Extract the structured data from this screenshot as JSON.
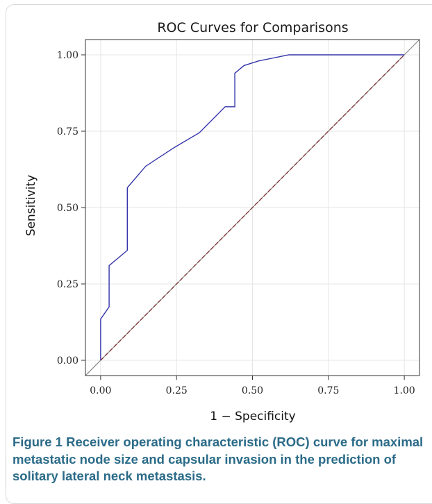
{
  "chart_data": {
    "type": "line",
    "title": "ROC Curves for Comparisons",
    "xlabel": "1 − Specificity",
    "ylabel": "Sensitivity",
    "xlim": [
      -0.05,
      1.05
    ],
    "ylim": [
      -0.05,
      1.05
    ],
    "xticks": [
      0.0,
      0.25,
      0.5,
      0.75,
      1.0
    ],
    "yticks": [
      0.0,
      0.25,
      0.5,
      0.75,
      1.0
    ],
    "xtick_labels": [
      "0.00",
      "0.25",
      "0.50",
      "0.75",
      "1.00"
    ],
    "ytick_labels": [
      "0.00",
      "0.25",
      "0.50",
      "0.75",
      "1.00"
    ],
    "grid": true,
    "series": [
      {
        "color": "#3333aa",
        "x": [
          0.0,
          0.0,
          0.028,
          0.028,
          0.088,
          0.088,
          0.148,
          0.24,
          0.325,
          0.41,
          0.442,
          0.442,
          0.472,
          0.52,
          0.62,
          1.0
        ],
        "y": [
          0.0,
          0.135,
          0.175,
          0.31,
          0.36,
          0.565,
          0.635,
          0.695,
          0.745,
          0.83,
          0.83,
          0.94,
          0.965,
          0.98,
          1.0,
          1.0
        ]
      },
      {
        "color": "#8b3a3a",
        "dashed": true,
        "x": [
          0.0,
          1.0
        ],
        "y": [
          0.0,
          1.0
        ]
      }
    ],
    "reference_line": {
      "color": "#888888",
      "x": [
        -0.05,
        1.05
      ],
      "y": [
        -0.05,
        1.05
      ]
    }
  },
  "caption": {
    "label": "Figure 1",
    "text": " Receiver operating characteristic (ROC) curve for maximal metastatic node size and capsular invasion in the prediction of solitary lateral neck metastasis."
  }
}
